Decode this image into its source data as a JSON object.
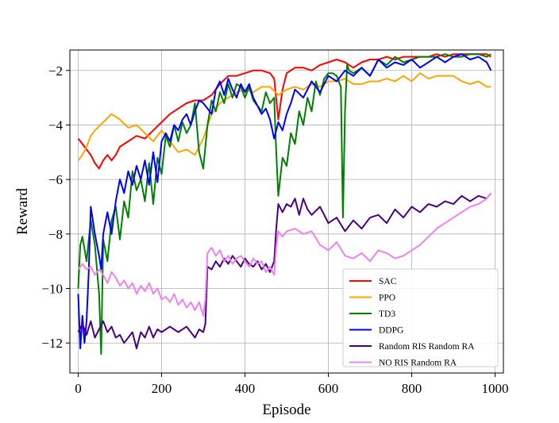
{
  "chart_data": {
    "type": "line",
    "xlabel": "Episode",
    "ylabel": "Reward",
    "xlim": [
      -20,
      1020
    ],
    "ylim": [
      -13.1,
      -1.25
    ],
    "xticks": [
      0,
      200,
      400,
      600,
      800,
      1000
    ],
    "yticks": [
      -12,
      -10,
      -8,
      -6,
      -4,
      -2
    ],
    "xtick_labels": [
      "0",
      "200",
      "400",
      "600",
      "800",
      "1000"
    ],
    "ytick_labels": [
      "−12",
      "−10",
      "−8",
      "−6",
      "−4",
      "−2"
    ],
    "grid": true,
    "legend_position": "lower-right",
    "series": [
      {
        "name": "SAC",
        "color": "#ff0000",
        "x": [
          0,
          10,
          20,
          30,
          40,
          50,
          60,
          70,
          80,
          90,
          100,
          120,
          140,
          160,
          180,
          200,
          220,
          240,
          260,
          280,
          300,
          320,
          340,
          360,
          380,
          400,
          420,
          440,
          460,
          470,
          480,
          490,
          500,
          520,
          540,
          560,
          580,
          600,
          620,
          640,
          660,
          680,
          700,
          720,
          740,
          760,
          780,
          800,
          820,
          840,
          860,
          880,
          900,
          920,
          940,
          960,
          980,
          990
        ],
        "y": [
          -4.5,
          -4.7,
          -4.9,
          -5.1,
          -5.4,
          -5.6,
          -5.3,
          -5.1,
          -5.3,
          -5.1,
          -4.8,
          -4.6,
          -4.4,
          -4.5,
          -4.2,
          -3.9,
          -3.6,
          -3.4,
          -3.2,
          -3.1,
          -3.1,
          -2.9,
          -2.5,
          -2.2,
          -2.2,
          -2.1,
          -2.0,
          -2.0,
          -2.1,
          -2.3,
          -3.8,
          -2.7,
          -2.1,
          -1.9,
          -1.9,
          -2.0,
          -1.8,
          -1.7,
          -1.6,
          -1.7,
          -1.9,
          -1.7,
          -1.6,
          -1.6,
          -1.5,
          -1.6,
          -1.5,
          -1.5,
          -1.5,
          -1.5,
          -1.4,
          -1.5,
          -1.4,
          -1.4,
          -1.4,
          -1.4,
          -1.4,
          -1.5
        ]
      },
      {
        "name": "PPO",
        "color": "#ffa500",
        "x": [
          0,
          10,
          20,
          30,
          40,
          60,
          80,
          100,
          120,
          140,
          160,
          180,
          200,
          220,
          240,
          260,
          280,
          300,
          320,
          340,
          360,
          380,
          400,
          420,
          440,
          460,
          480,
          500,
          520,
          540,
          560,
          580,
          600,
          620,
          640,
          660,
          680,
          700,
          720,
          740,
          760,
          780,
          800,
          820,
          840,
          860,
          880,
          900,
          920,
          940,
          960,
          980,
          990
        ],
        "y": [
          -5.3,
          -5.1,
          -4.8,
          -4.4,
          -4.2,
          -3.9,
          -3.6,
          -3.8,
          -4.1,
          -4.0,
          -4.3,
          -4.6,
          -4.2,
          -4.6,
          -5.0,
          -4.9,
          -5.1,
          -4.5,
          -3.6,
          -3.2,
          -3.0,
          -2.8,
          -2.7,
          -2.8,
          -2.6,
          -2.6,
          -2.9,
          -2.7,
          -2.6,
          -2.7,
          -2.5,
          -2.6,
          -2.4,
          -2.4,
          -2.3,
          -2.5,
          -2.5,
          -2.4,
          -2.4,
          -2.3,
          -2.4,
          -2.2,
          -2.4,
          -2.1,
          -2.3,
          -2.2,
          -2.2,
          -2.2,
          -2.4,
          -2.5,
          -2.4,
          -2.6,
          -2.6
        ]
      },
      {
        "name": "TD3",
        "color": "#008000",
        "x": [
          0,
          5,
          10,
          20,
          30,
          40,
          50,
          55,
          60,
          70,
          80,
          90,
          100,
          110,
          120,
          130,
          140,
          150,
          160,
          170,
          180,
          190,
          200,
          210,
          220,
          230,
          240,
          250,
          260,
          270,
          280,
          290,
          300,
          310,
          320,
          330,
          340,
          350,
          360,
          370,
          380,
          390,
          400,
          410,
          420,
          430,
          440,
          450,
          460,
          470,
          475,
          480,
          490,
          500,
          510,
          520,
          530,
          540,
          550,
          560,
          570,
          580,
          590,
          600,
          610,
          620,
          630,
          635,
          640,
          645,
          650,
          660,
          680,
          700,
          720,
          740,
          760,
          780,
          800,
          820,
          840,
          860,
          880,
          900,
          920,
          940,
          960,
          980,
          990
        ],
        "y": [
          -10.0,
          -8.4,
          -8.1,
          -9.0,
          -7.5,
          -8.4,
          -10.2,
          -12.4,
          -8.2,
          -9.0,
          -7.5,
          -7.0,
          -8.2,
          -6.8,
          -7.4,
          -5.7,
          -6.4,
          -6.0,
          -6.8,
          -5.4,
          -6.9,
          -5.2,
          -5.8,
          -4.4,
          -4.8,
          -4.0,
          -4.6,
          -3.9,
          -4.3,
          -4.0,
          -3.2,
          -5.0,
          -5.6,
          -4.0,
          -3.1,
          -3.5,
          -2.8,
          -3.2,
          -2.5,
          -3.0,
          -2.5,
          -2.6,
          -3.0,
          -2.6,
          -3.1,
          -3.3,
          -3.5,
          -2.8,
          -3.2,
          -3.0,
          -5.0,
          -6.6,
          -5.2,
          -5.5,
          -4.3,
          -4.7,
          -3.5,
          -4.0,
          -3.0,
          -3.5,
          -2.4,
          -2.9,
          -2.3,
          -2.1,
          -2.1,
          -2.2,
          -2.6,
          -7.4,
          -3.5,
          -1.8,
          -2.0,
          -2.1,
          -1.9,
          -2.2,
          -1.6,
          -1.8,
          -1.5,
          -1.7,
          -1.6,
          -1.5,
          -1.5,
          -1.5,
          -1.4,
          -1.5,
          -1.5,
          -1.4,
          -1.4,
          -1.5,
          -1.4
        ]
      },
      {
        "name": "DDPG",
        "color": "#0000ff",
        "x": [
          0,
          5,
          10,
          15,
          20,
          25,
          30,
          40,
          50,
          55,
          60,
          70,
          80,
          90,
          100,
          110,
          120,
          130,
          140,
          150,
          160,
          170,
          180,
          190,
          200,
          210,
          220,
          230,
          240,
          250,
          260,
          270,
          280,
          290,
          300,
          310,
          320,
          330,
          340,
          350,
          360,
          370,
          380,
          390,
          400,
          410,
          420,
          430,
          440,
          450,
          460,
          470,
          480,
          490,
          500,
          510,
          520,
          540,
          560,
          580,
          600,
          620,
          640,
          660,
          680,
          700,
          720,
          740,
          760,
          780,
          800,
          820,
          840,
          860,
          880,
          900,
          920,
          940,
          960,
          980,
          990
        ],
        "y": [
          -10.2,
          -12.2,
          -11.0,
          -12.0,
          -11.2,
          -9.5,
          -7.0,
          -8.0,
          -8.8,
          -9.3,
          -8.0,
          -7.2,
          -8.0,
          -6.8,
          -6.0,
          -6.5,
          -5.7,
          -6.2,
          -5.5,
          -6.0,
          -5.3,
          -6.2,
          -5.0,
          -6.1,
          -4.6,
          -4.3,
          -4.6,
          -4.0,
          -4.2,
          -3.8,
          -3.6,
          -4.0,
          -3.5,
          -3.1,
          -3.2,
          -3.4,
          -3.6,
          -2.7,
          -2.4,
          -2.9,
          -2.3,
          -2.7,
          -3.0,
          -2.5,
          -2.8,
          -2.5,
          -3.0,
          -3.3,
          -3.6,
          -3.4,
          -3.8,
          -4.5,
          -3.9,
          -4.2,
          -3.6,
          -3.2,
          -2.7,
          -3.0,
          -2.4,
          -2.8,
          -2.2,
          -2.4,
          -2.0,
          -2.2,
          -1.9,
          -2.2,
          -1.6,
          -1.9,
          -1.7,
          -1.8,
          -1.6,
          -1.9,
          -1.7,
          -1.5,
          -1.7,
          -1.5,
          -1.4,
          -1.6,
          -1.5,
          -1.7,
          -2.0
        ]
      },
      {
        "name": "Random RIS Random RA",
        "color": "#4b0082",
        "x": [
          0,
          10,
          20,
          30,
          40,
          50,
          60,
          70,
          80,
          90,
          100,
          110,
          120,
          130,
          140,
          150,
          160,
          170,
          180,
          190,
          200,
          220,
          240,
          260,
          280,
          290,
          300,
          305,
          310,
          320,
          330,
          340,
          350,
          360,
          370,
          380,
          390,
          400,
          410,
          420,
          430,
          440,
          450,
          460,
          470,
          475,
          480,
          490,
          500,
          510,
          520,
          530,
          540,
          550,
          560,
          580,
          600,
          620,
          640,
          660,
          680,
          700,
          720,
          740,
          760,
          780,
          800,
          820,
          840,
          860,
          880,
          900,
          920,
          940,
          960,
          980,
          990
        ],
        "y": [
          -11.6,
          -11.3,
          -11.7,
          -11.2,
          -11.8,
          -11.5,
          -11.2,
          -11.6,
          -11.4,
          -11.8,
          -11.7,
          -12.0,
          -11.8,
          -11.6,
          -12.2,
          -11.6,
          -11.8,
          -11.4,
          -11.8,
          -11.5,
          -11.6,
          -11.4,
          -11.6,
          -11.4,
          -11.8,
          -11.5,
          -11.6,
          -11.3,
          -9.2,
          -9.3,
          -9.0,
          -9.2,
          -8.9,
          -9.1,
          -8.8,
          -9.0,
          -9.2,
          -8.9,
          -9.1,
          -9.2,
          -9.0,
          -9.3,
          -9.1,
          -9.4,
          -9.0,
          -7.8,
          -6.9,
          -7.2,
          -6.9,
          -7.0,
          -6.7,
          -7.3,
          -6.7,
          -7.1,
          -7.3,
          -7.0,
          -7.6,
          -7.4,
          -7.9,
          -7.5,
          -7.8,
          -7.4,
          -7.3,
          -7.6,
          -7.1,
          -7.4,
          -7.0,
          -7.2,
          -6.9,
          -7.0,
          -6.8,
          -6.9,
          -6.6,
          -6.8,
          -6.6,
          -6.7,
          -6.5
        ]
      },
      {
        "name": "NO RIS Random RA",
        "color": "#ee82ee",
        "x": [
          0,
          10,
          20,
          30,
          40,
          50,
          60,
          70,
          80,
          90,
          100,
          110,
          120,
          130,
          140,
          150,
          160,
          170,
          180,
          190,
          200,
          210,
          220,
          230,
          240,
          250,
          260,
          270,
          280,
          290,
          300,
          305,
          310,
          320,
          330,
          340,
          350,
          360,
          370,
          380,
          390,
          400,
          410,
          420,
          430,
          440,
          450,
          460,
          470,
          475,
          480,
          490,
          500,
          520,
          540,
          560,
          580,
          600,
          620,
          640,
          660,
          680,
          700,
          720,
          740,
          760,
          780,
          800,
          820,
          840,
          860,
          880,
          900,
          920,
          940,
          960,
          980,
          990
        ],
        "y": [
          -9.3,
          -9.1,
          -9.3,
          -9.2,
          -9.5,
          -9.3,
          -9.5,
          -9.8,
          -9.4,
          -9.6,
          -9.9,
          -9.7,
          -10.0,
          -9.8,
          -10.2,
          -9.9,
          -10.1,
          -9.8,
          -10.2,
          -10.0,
          -10.4,
          -10.3,
          -10.5,
          -10.2,
          -10.6,
          -10.4,
          -10.7,
          -10.5,
          -10.8,
          -10.5,
          -11.0,
          -10.4,
          -8.7,
          -8.5,
          -8.8,
          -8.6,
          -9.0,
          -8.8,
          -9.1,
          -8.9,
          -8.8,
          -9.0,
          -9.2,
          -8.9,
          -9.1,
          -9.0,
          -9.4,
          -9.2,
          -9.5,
          -8.5,
          -7.9,
          -8.1,
          -7.9,
          -7.8,
          -8.0,
          -7.9,
          -8.4,
          -8.6,
          -8.3,
          -8.8,
          -8.9,
          -8.7,
          -9.0,
          -8.6,
          -8.7,
          -8.9,
          -8.8,
          -8.6,
          -8.4,
          -8.1,
          -7.8,
          -7.6,
          -7.4,
          -7.2,
          -7.0,
          -6.9,
          -6.7,
          -6.5
        ]
      }
    ]
  }
}
